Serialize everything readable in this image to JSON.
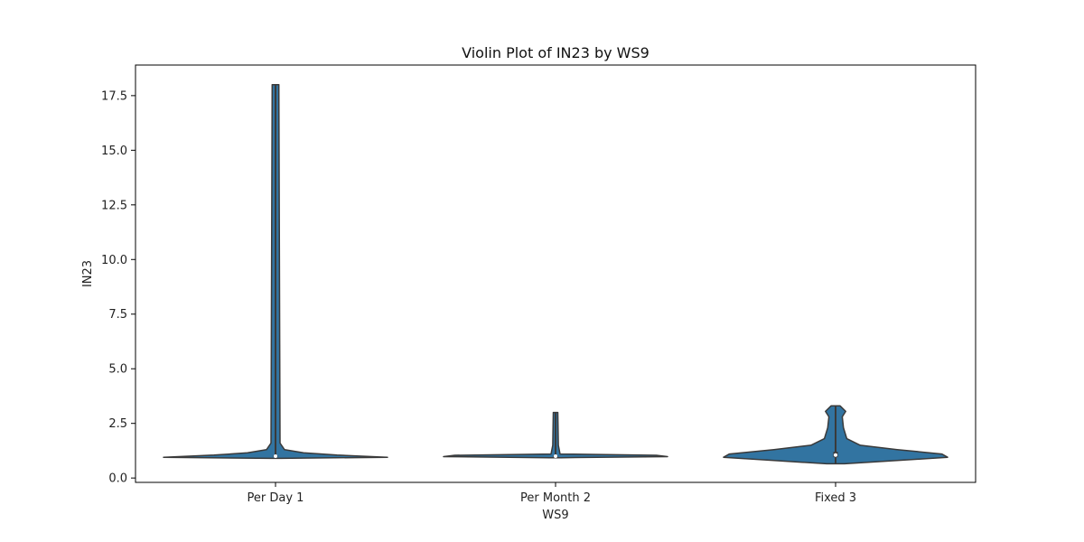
{
  "chart_data": {
    "type": "violin",
    "title": "Violin Plot of IN23 by WS9",
    "xlabel": "WS9",
    "ylabel": "IN23",
    "ylim": [
      -0.2,
      18.9
    ],
    "yticks": [
      0.0,
      2.5,
      5.0,
      7.5,
      10.0,
      12.5,
      15.0,
      17.5
    ],
    "ytick_labels": [
      "0.0",
      "2.5",
      "5.0",
      "7.5",
      "10.0",
      "12.5",
      "15.0",
      "17.5"
    ],
    "categories": [
      "Per Day 1",
      "Per Month 2",
      "Fixed 3"
    ],
    "grid": false,
    "colors": {
      "violin_fill": "#3274a1",
      "violin_edge": "#3a3a3a",
      "frame": "#000000"
    },
    "violins": [
      {
        "category": "Per Day 1",
        "min": 0.9,
        "max": 18.0,
        "median": 1.0,
        "q1": 0.97,
        "q3": 1.03,
        "profile": [
          [
            0.9,
            0.05
          ],
          [
            0.95,
            1.0
          ],
          [
            1.05,
            0.55
          ],
          [
            1.15,
            0.25
          ],
          [
            1.3,
            0.08
          ],
          [
            1.6,
            0.04
          ],
          [
            18.0,
            0.03
          ]
        ]
      },
      {
        "category": "Per Month 2",
        "min": 0.93,
        "max": 3.0,
        "median": 1.0,
        "q1": 0.98,
        "q3": 1.02,
        "profile": [
          [
            0.93,
            0.05
          ],
          [
            0.98,
            1.0
          ],
          [
            1.04,
            0.9
          ],
          [
            1.1,
            0.04
          ],
          [
            1.5,
            0.025
          ],
          [
            3.0,
            0.02
          ]
        ]
      },
      {
        "category": "Fixed 3",
        "min": 0.65,
        "max": 3.3,
        "median": 1.05,
        "q1": 0.95,
        "q3": 1.2,
        "profile": [
          [
            0.65,
            0.08
          ],
          [
            0.8,
            0.55
          ],
          [
            0.95,
            1.0
          ],
          [
            1.1,
            0.95
          ],
          [
            1.3,
            0.55
          ],
          [
            1.5,
            0.22
          ],
          [
            1.8,
            0.1
          ],
          [
            2.3,
            0.07
          ],
          [
            2.8,
            0.06
          ],
          [
            3.05,
            0.09
          ],
          [
            3.3,
            0.04
          ]
        ]
      }
    ]
  }
}
